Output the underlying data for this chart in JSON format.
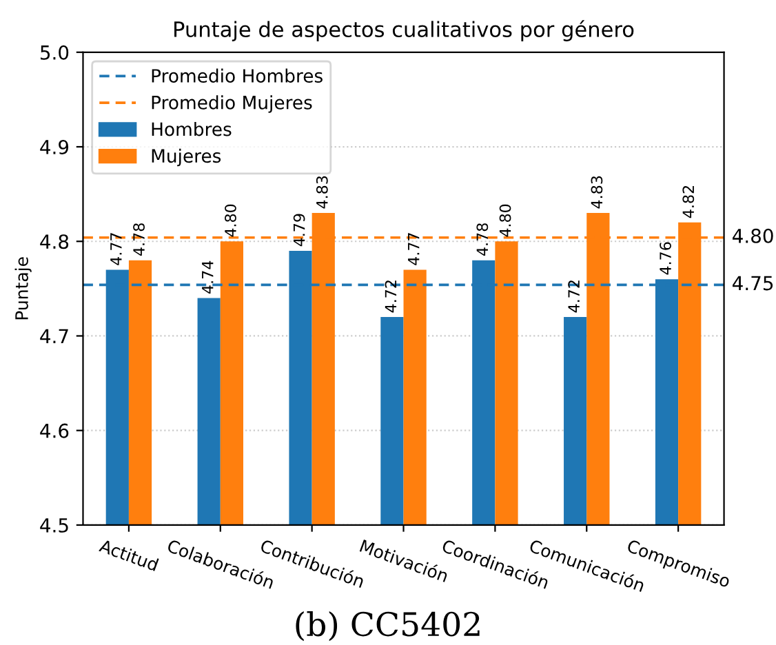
{
  "chart_data": {
    "type": "bar",
    "title": "Puntaje de aspectos cualitativos por género",
    "ylabel": "Puntaje",
    "categories": [
      "Actitud",
      "Colaboración",
      "Contribución",
      "Motivación",
      "Coordinación",
      "Comunicación",
      "Compromiso"
    ],
    "series": [
      {
        "name": "Hombres",
        "color": "#1f77b4",
        "values": [
          4.77,
          4.74,
          4.79,
          4.72,
          4.78,
          4.72,
          4.76
        ],
        "value_labels": [
          "4.77",
          "4.74",
          "4.79",
          "4.72",
          "4.78",
          "4.72",
          "4.76"
        ]
      },
      {
        "name": "Mujeres",
        "color": "#ff7f0e",
        "values": [
          4.78,
          4.8,
          4.83,
          4.77,
          4.8,
          4.83,
          4.82
        ],
        "value_labels": [
          "4.78",
          "4.80",
          "4.83",
          "4.77",
          "4.80",
          "4.83",
          "4.82"
        ]
      }
    ],
    "ylim": [
      4.5,
      5.0
    ],
    "yticks": [
      4.5,
      4.6,
      4.7,
      4.8,
      4.9,
      {
        "value": 5.0,
        "label": "5.0"
      }
    ],
    "ref_lines": [
      {
        "axis": "y",
        "value": 4.754,
        "label": "Promedio Hombres",
        "color": "#1f77b4",
        "line_style": "dashed"
      },
      {
        "axis": "y",
        "value": 4.804,
        "label": "Promedio Mujeres",
        "color": "#ff7f0e",
        "line_style": "dashed"
      }
    ],
    "annotations": [
      "4.75",
      "4.80",
      "(b) CC5402"
    ],
    "grid": "y",
    "legend": "top left"
  }
}
